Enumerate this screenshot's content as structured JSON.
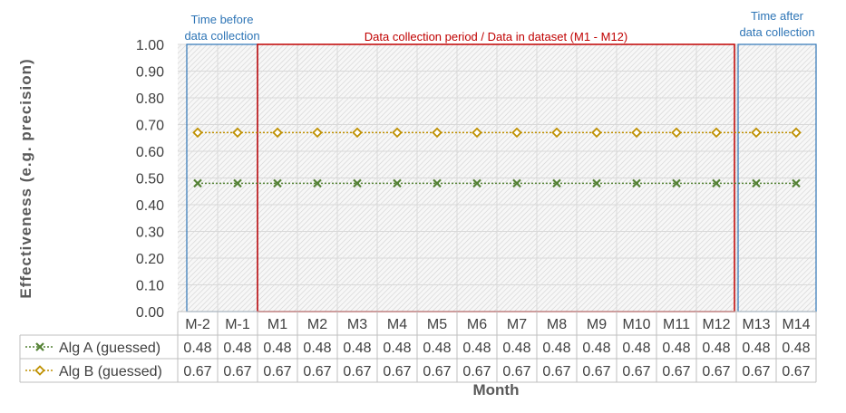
{
  "chart_data": {
    "type": "line",
    "categories": [
      "M-2",
      "M-1",
      "M1",
      "M2",
      "M3",
      "M4",
      "M5",
      "M6",
      "M7",
      "M8",
      "M9",
      "M10",
      "M11",
      "M12",
      "M13",
      "M14"
    ],
    "series": [
      {
        "name": "Alg A (guessed)",
        "values": [
          0.48,
          0.48,
          0.48,
          0.48,
          0.48,
          0.48,
          0.48,
          0.48,
          0.48,
          0.48,
          0.48,
          0.48,
          0.48,
          0.48,
          0.48,
          0.48
        ],
        "color": "#548235",
        "marker": "x"
      },
      {
        "name": "Alg B (guessed)",
        "values": [
          0.67,
          0.67,
          0.67,
          0.67,
          0.67,
          0.67,
          0.67,
          0.67,
          0.67,
          0.67,
          0.67,
          0.67,
          0.67,
          0.67,
          0.67,
          0.67
        ],
        "color": "#bf9000",
        "marker": "diamond"
      }
    ],
    "ylabel": "Effectiveness   (e.g. precision)",
    "xlabel": "Month",
    "ylim": [
      0,
      1
    ],
    "yticks": [
      "0.00",
      "0.10",
      "0.20",
      "0.30",
      "0.40",
      "0.50",
      "0.60",
      "0.70",
      "0.80",
      "0.90",
      "1.00"
    ],
    "data_table": true,
    "regions": [
      {
        "label_lines": [
          "Time before",
          "data collection"
        ],
        "from": "M-2",
        "to": "M-1",
        "color": "#2e75b6"
      },
      {
        "label_lines": [
          "Data collection period / Data in dataset (M1 - M12)"
        ],
        "from": "M1",
        "to": "M12",
        "color": "#c00000"
      },
      {
        "label_lines": [
          "Time after",
          "data collection"
        ],
        "from": "M13",
        "to": "M14",
        "color": "#2e75b6"
      }
    ],
    "grid": true
  }
}
